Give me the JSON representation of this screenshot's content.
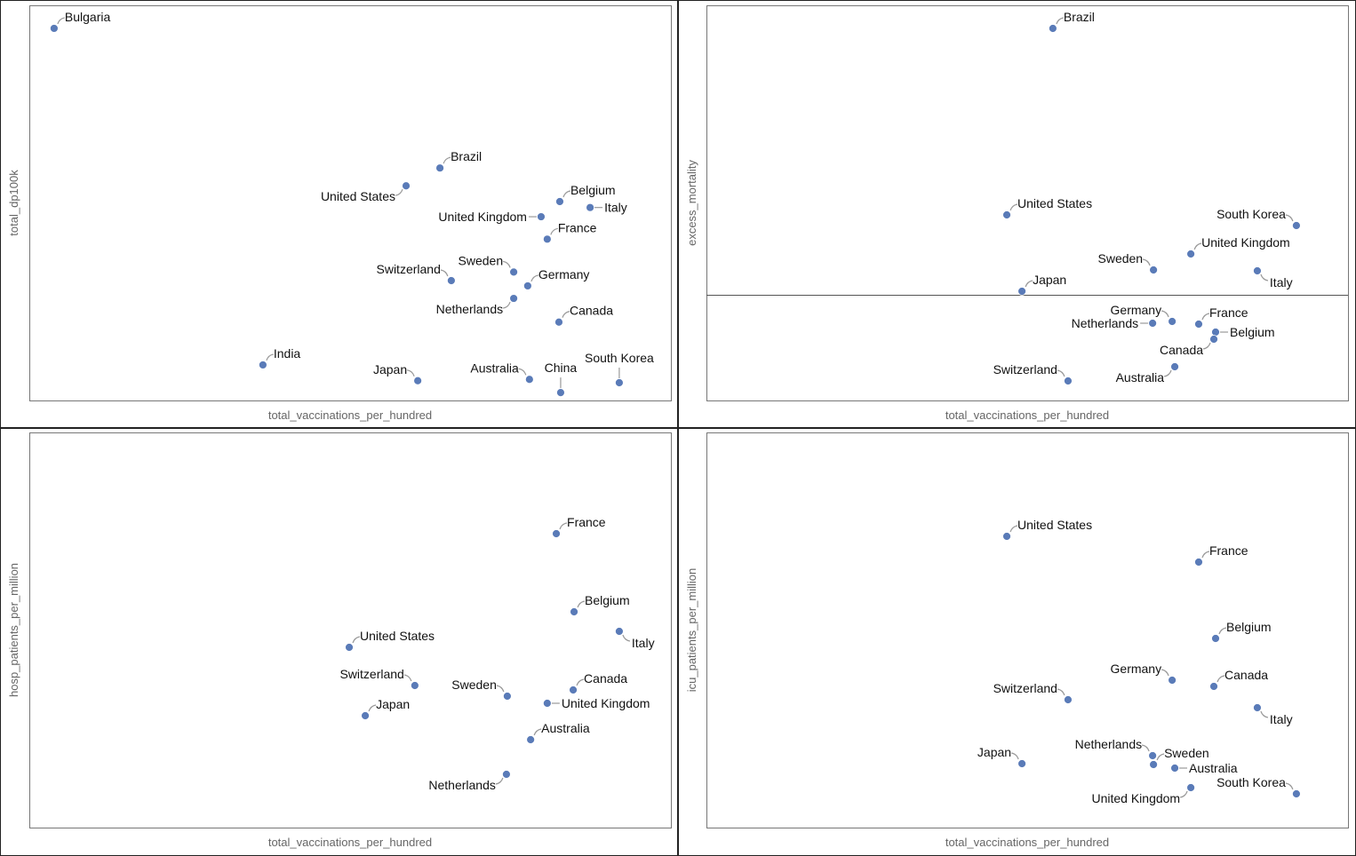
{
  "chart_data": [
    {
      "type": "scatter",
      "xlabel": "total_vaccinations_per_hundred",
      "ylabel": "total_dp100k",
      "xlim": [
        40,
        260
      ],
      "ylim": [
        0,
        600
      ],
      "grid": false,
      "tick_labels_shown": false,
      "point_color": "#5a7bb8",
      "points": [
        {
          "label": "Bulgaria",
          "x": 48.5,
          "y": 565
        },
        {
          "label": "Brazil",
          "x": 180.8,
          "y": 353
        },
        {
          "label": "United States",
          "x": 169.2,
          "y": 326
        },
        {
          "label": "Belgium",
          "x": 221.9,
          "y": 302
        },
        {
          "label": "Italy",
          "x": 232.3,
          "y": 293
        },
        {
          "label": "United Kingdom",
          "x": 215.5,
          "y": 279
        },
        {
          "label": "France",
          "x": 217.6,
          "y": 245
        },
        {
          "label": "Sweden",
          "x": 206.1,
          "y": 195
        },
        {
          "label": "Switzerland",
          "x": 184.7,
          "y": 182
        },
        {
          "label": "Germany",
          "x": 210.9,
          "y": 174
        },
        {
          "label": "Netherlands",
          "x": 206.1,
          "y": 155
        },
        {
          "label": "Canada",
          "x": 221.6,
          "y": 119
        },
        {
          "label": "India",
          "x": 120.1,
          "y": 54
        },
        {
          "label": "Japan",
          "x": 173.2,
          "y": 30
        },
        {
          "label": "Australia",
          "x": 211.5,
          "y": 32
        },
        {
          "label": "China",
          "x": 222.2,
          "y": 12
        },
        {
          "label": "South Korea",
          "x": 242.3,
          "y": 27
        }
      ]
    },
    {
      "type": "scatter",
      "xlabel": "total_vaccinations_per_hundred",
      "ylabel": "excess_mortality",
      "xlim": [
        40,
        260
      ],
      "ylim": [
        -11.9,
        32.6
      ],
      "reference_line_y": 0,
      "grid": false,
      "tick_labels_shown": false,
      "point_color": "#5a7bb8",
      "points": [
        {
          "label": "Brazil",
          "x": 158.8,
          "y": 30.0
        },
        {
          "label": "United States",
          "x": 143.0,
          "y": 9.0
        },
        {
          "label": "South Korea",
          "x": 242.3,
          "y": 7.8
        },
        {
          "label": "United Kingdom",
          "x": 206.1,
          "y": 4.6
        },
        {
          "label": "Sweden",
          "x": 193.3,
          "y": 2.8
        },
        {
          "label": "Italy",
          "x": 228.9,
          "y": 2.7
        },
        {
          "label": "Japan",
          "x": 148.2,
          "y": 0.4
        },
        {
          "label": "Germany",
          "x": 199.7,
          "y": -3.0
        },
        {
          "label": "Netherlands",
          "x": 193.0,
          "y": -3.2
        },
        {
          "label": "France",
          "x": 208.8,
          "y": -3.3
        },
        {
          "label": "Belgium",
          "x": 214.6,
          "y": -4.2
        },
        {
          "label": "Canada",
          "x": 214.0,
          "y": -5.0
        },
        {
          "label": "Australia",
          "x": 200.6,
          "y": -8.1
        },
        {
          "label": "Switzerland",
          "x": 164.0,
          "y": -9.7
        }
      ]
    },
    {
      "type": "scatter",
      "xlabel": "total_vaccinations_per_hundred",
      "ylabel": "hosp_patients_per_million",
      "xlim": [
        40,
        260
      ],
      "ylim": [
        0,
        445
      ],
      "grid": false,
      "tick_labels_shown": false,
      "point_color": "#5a7bb8",
      "points": [
        {
          "label": "France",
          "x": 220.7,
          "y": 331
        },
        {
          "label": "Belgium",
          "x": 226.8,
          "y": 243
        },
        {
          "label": "Italy",
          "x": 242.3,
          "y": 221
        },
        {
          "label": "United States",
          "x": 149.7,
          "y": 203
        },
        {
          "label": "Switzerland",
          "x": 172.2,
          "y": 160
        },
        {
          "label": "Canada",
          "x": 226.5,
          "y": 155
        },
        {
          "label": "Sweden",
          "x": 203.9,
          "y": 148
        },
        {
          "label": "United Kingdom",
          "x": 217.6,
          "y": 140
        },
        {
          "label": "Japan",
          "x": 155.2,
          "y": 126
        },
        {
          "label": "Australia",
          "x": 211.9,
          "y": 99
        },
        {
          "label": "Netherlands",
          "x": 203.6,
          "y": 60
        }
      ]
    },
    {
      "type": "scatter",
      "xlabel": "total_vaccinations_per_hundred",
      "ylabel": "icu_patients_per_million",
      "xlim": [
        40,
        260
      ],
      "ylim": [
        0,
        44.5
      ],
      "grid": false,
      "tick_labels_shown": false,
      "point_color": "#5a7bb8",
      "points": [
        {
          "label": "United States",
          "x": 143.0,
          "y": 32.8
        },
        {
          "label": "France",
          "x": 208.8,
          "y": 29.9
        },
        {
          "label": "Belgium",
          "x": 214.6,
          "y": 21.3
        },
        {
          "label": "Germany",
          "x": 199.7,
          "y": 16.6
        },
        {
          "label": "Canada",
          "x": 214.0,
          "y": 15.9
        },
        {
          "label": "Switzerland",
          "x": 164.0,
          "y": 14.4
        },
        {
          "label": "Italy",
          "x": 228.9,
          "y": 13.5
        },
        {
          "label": "Netherlands",
          "x": 193.0,
          "y": 8.1
        },
        {
          "label": "Sweden",
          "x": 193.3,
          "y": 7.1
        },
        {
          "label": "Australia",
          "x": 200.6,
          "y": 6.7
        },
        {
          "label": "Japan",
          "x": 148.2,
          "y": 7.2
        },
        {
          "label": "United Kingdom",
          "x": 206.1,
          "y": 4.5
        },
        {
          "label": "South Korea",
          "x": 242.3,
          "y": 3.8
        }
      ]
    }
  ]
}
